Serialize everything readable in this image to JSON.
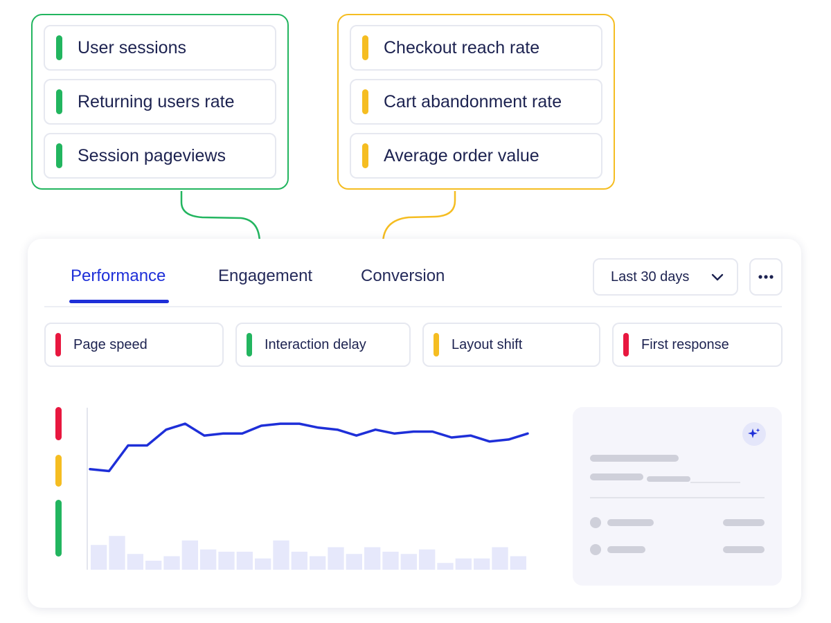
{
  "callouts": {
    "green": {
      "color": "#22b55f",
      "items": [
        {
          "label": "User sessions"
        },
        {
          "label": "Returning users rate"
        },
        {
          "label": "Session pageviews"
        }
      ]
    },
    "yellow": {
      "color": "#f5bd21",
      "items": [
        {
          "label": "Checkout reach rate"
        },
        {
          "label": "Cart abandonment rate"
        },
        {
          "label": "Average order value"
        }
      ]
    }
  },
  "tabs": [
    {
      "label": "Performance",
      "active": true
    },
    {
      "label": "Engagement",
      "active": false
    },
    {
      "label": "Conversion",
      "active": false
    }
  ],
  "date_range": {
    "label": "Last 30 days",
    "icon": "chevron-down-icon"
  },
  "more_menu": {
    "icon": "more-dots-icon"
  },
  "metric_chips": [
    {
      "label": "Page speed",
      "status_color": "#e8173f"
    },
    {
      "label": "Interaction delay",
      "status_color": "#22b55f"
    },
    {
      "label": "Layout shift",
      "status_color": "#f5bd21"
    },
    {
      "label": "First response",
      "status_color": "#e8173f"
    }
  ],
  "legend_colors": [
    "#e8173f",
    "#f5bd21",
    "#22b55f"
  ],
  "colors": {
    "accent": "#1e2fd8",
    "bar_fill": "#e6e8fb"
  },
  "insight_panel": {
    "icon": "sparkle-icon"
  },
  "chart_data": {
    "type": "line",
    "line_series": [
      51,
      50,
      63,
      63,
      71,
      74,
      68,
      69,
      69,
      73,
      74,
      74,
      72,
      71,
      68,
      71,
      69,
      70,
      70,
      67,
      68,
      65,
      66,
      69
    ],
    "bar_series": [
      11,
      15,
      7,
      4,
      6,
      13,
      9,
      8,
      8,
      5,
      13,
      8,
      6,
      10,
      7,
      10,
      8,
      7,
      9,
      3,
      5,
      5,
      10,
      6
    ],
    "line_range": [
      0,
      80
    ],
    "bar_range": [
      0,
      40
    ],
    "grid": false
  }
}
